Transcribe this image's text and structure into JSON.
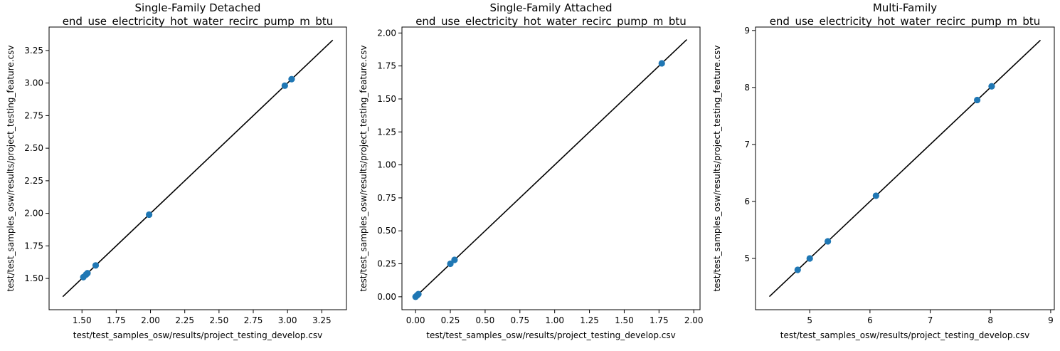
{
  "chart_data": [
    {
      "type": "scatter",
      "title": "Single-Family Detached\nend_use_electricity_hot_water_recirc_pump_m_btu",
      "xlabel": "test/test_samples_osw/results/project_testing_develop.csv",
      "ylabel": "test/test_samples_osw/results/project_testing_feature.csv",
      "xlim": [
        1.26,
        3.43
      ],
      "ylim": [
        1.26,
        3.43
      ],
      "xticks": [
        1.5,
        1.75,
        2.0,
        2.25,
        2.5,
        2.75,
        3.0,
        3.25
      ],
      "xtick_labels": [
        "1.50",
        "1.75",
        "2.00",
        "2.25",
        "2.50",
        "2.75",
        "3.00",
        "3.25"
      ],
      "yticks": [
        1.5,
        1.75,
        2.0,
        2.25,
        2.5,
        2.75,
        3.0,
        3.25
      ],
      "ytick_labels": [
        "1.50",
        "1.75",
        "2.00",
        "2.25",
        "2.50",
        "2.75",
        "3.00",
        "3.25"
      ],
      "line": [
        1.36,
        3.33
      ],
      "x": [
        1.51,
        1.53,
        1.54,
        1.6,
        1.99,
        2.98,
        3.03
      ],
      "y": [
        1.51,
        1.53,
        1.54,
        1.6,
        1.99,
        2.98,
        3.03
      ],
      "grid": false
    },
    {
      "type": "scatter",
      "title": "Single-Family Attached\nend_use_electricity_hot_water_recirc_pump_m_btu",
      "xlabel": "test/test_samples_osw/results/project_testing_develop.csv",
      "ylabel": "test/test_samples_osw/results/project_testing_feature.csv",
      "xlim": [
        -0.098,
        2.045
      ],
      "ylim": [
        -0.098,
        2.045
      ],
      "xticks": [
        0.0,
        0.25,
        0.5,
        0.75,
        1.0,
        1.25,
        1.5,
        1.75,
        2.0
      ],
      "xtick_labels": [
        "0.00",
        "0.25",
        "0.50",
        "0.75",
        "1.00",
        "1.25",
        "1.50",
        "1.75",
        "2.00"
      ],
      "yticks": [
        0.0,
        0.25,
        0.5,
        0.75,
        1.0,
        1.25,
        1.5,
        1.75,
        2.0
      ],
      "ytick_labels": [
        "0.00",
        "0.25",
        "0.50",
        "0.75",
        "1.00",
        "1.25",
        "1.50",
        "1.75",
        "2.00"
      ],
      "line": [
        0.0,
        1.95
      ],
      "x": [
        0.0,
        0.01,
        0.02,
        0.25,
        0.28,
        1.77
      ],
      "y": [
        0.0,
        0.01,
        0.02,
        0.25,
        0.28,
        1.77
      ],
      "grid": false
    },
    {
      "type": "scatter",
      "title": "Multi-Family\nend_use_electricity_hot_water_recirc_pump_m_btu",
      "xlabel": "test/test_samples_osw/results/project_testing_develop.csv",
      "ylabel": "test/test_samples_osw/results/project_testing_feature.csv",
      "xlim": [
        4.1,
        9.06
      ],
      "ylim": [
        4.1,
        9.06
      ],
      "xticks": [
        5,
        6,
        7,
        8,
        9
      ],
      "xtick_labels": [
        "5",
        "6",
        "7",
        "8",
        "9"
      ],
      "yticks": [
        5,
        6,
        7,
        8,
        9
      ],
      "ytick_labels": [
        "5",
        "6",
        "7",
        "8",
        "9"
      ],
      "line": [
        4.33,
        8.83
      ],
      "x": [
        4.8,
        5.0,
        5.3,
        6.1,
        7.78,
        8.02
      ],
      "y": [
        4.8,
        5.0,
        5.3,
        6.1,
        7.78,
        8.02
      ],
      "grid": false
    }
  ],
  "colors": {
    "points": "#1f77b4",
    "line": "#000000",
    "axes": "#000000"
  }
}
